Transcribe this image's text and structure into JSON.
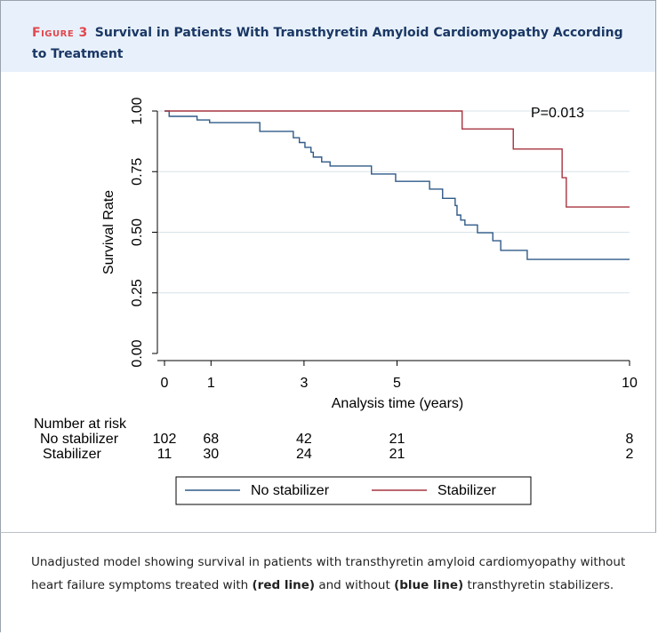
{
  "header": {
    "label": "Figure 3",
    "title": "Survival in Patients With Transthyretin Amyloid Cardiomyopathy According to Treatment"
  },
  "chart_data": {
    "type": "step",
    "ylabel": "Survival Rate",
    "xlabel": "Analysis time (years)",
    "annotation": "P=0.013",
    "xlim": [
      0,
      10
    ],
    "xticks": [
      0,
      1,
      3,
      5,
      10
    ],
    "ylim": [
      0,
      1
    ],
    "yticks": [
      {
        "value": 0,
        "label": "0.00"
      },
      {
        "value": 0.25,
        "label": "0.25"
      },
      {
        "value": 0.5,
        "label": "0.50"
      },
      {
        "value": 0.75,
        "label": "0.75"
      },
      {
        "value": 1,
        "label": "1.00"
      }
    ],
    "grid": true,
    "series": [
      {
        "name": "No stabilizer",
        "color": "#2f5a87",
        "x": [
          0,
          0.1,
          0.7,
          0.97,
          2.05,
          2.77,
          2.9,
          3.02,
          3.15,
          3.2,
          3.38,
          3.56,
          4.45,
          4.97,
          5.7,
          5.98,
          6.25,
          6.29,
          6.37,
          6.46,
          6.73,
          7.06,
          7.23,
          7.8,
          10
        ],
        "values": [
          1,
          0.978,
          0.963,
          0.952,
          0.916,
          0.89,
          0.87,
          0.85,
          0.83,
          0.81,
          0.79,
          0.773,
          0.74,
          0.71,
          0.678,
          0.64,
          0.61,
          0.571,
          0.55,
          0.53,
          0.498,
          0.465,
          0.425,
          0.388,
          0.388
        ]
      },
      {
        "name": "Stabilizer",
        "color": "#a6343f",
        "x": [
          0,
          6.4,
          7.5,
          8.55,
          8.64,
          10
        ],
        "values": [
          1,
          0.926,
          0.843,
          0.725,
          0.604,
          0.604
        ]
      }
    ],
    "risk_table": {
      "title": "Number at risk",
      "rows": [
        {
          "name": "No stabilizer",
          "values": [
            102,
            68,
            42,
            21,
            8
          ]
        },
        {
          "name": "Stabilizer",
          "values": [
            11,
            30,
            24,
            21,
            2
          ]
        }
      ]
    }
  },
  "caption": [
    "Unadjusted model showing survival in patients with transthyretin amyloid cardiomyopathy without heart failure symptoms treated with ",
    "(red line)",
    " and without ",
    "(blue line)",
    " transthyretin stabilizers."
  ]
}
